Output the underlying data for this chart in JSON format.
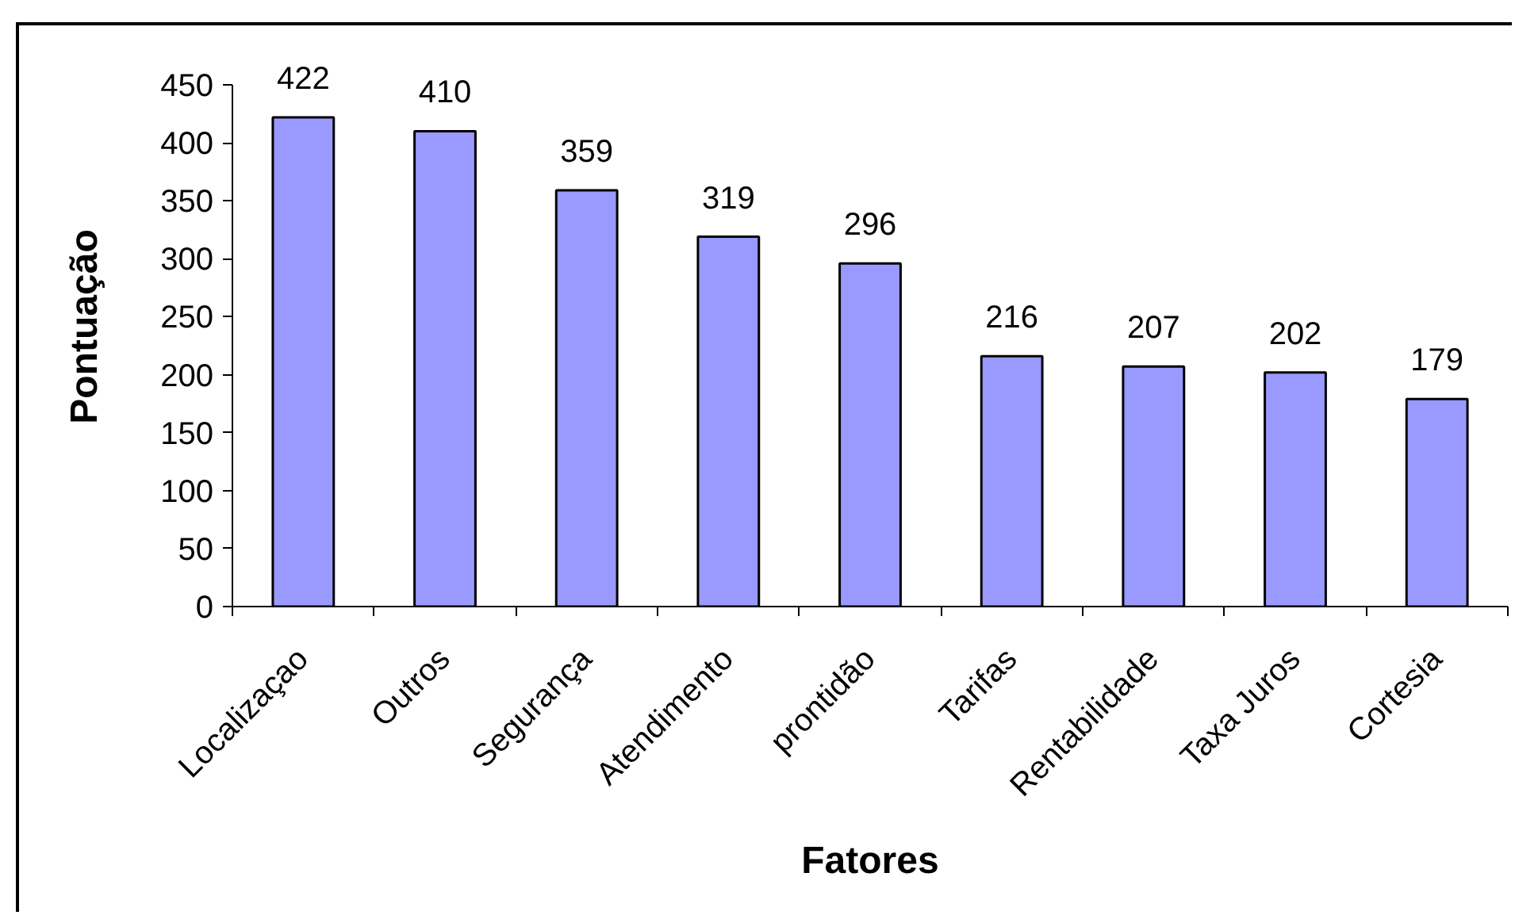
{
  "chart_data": {
    "type": "bar",
    "xlabel": "Fatores",
    "ylabel": "Pontuação",
    "categories": [
      "Localizaçao",
      "Outros",
      "Segurança",
      "Atendimento",
      "prontidão",
      "Tarifas",
      "Rentabilidade",
      "Taxa Juros",
      "Cortesia"
    ],
    "values": [
      422,
      410,
      359,
      319,
      296,
      216,
      207,
      202,
      179
    ],
    "color": "#9999ff",
    "ylim": [
      0,
      450
    ],
    "yticks": [
      0,
      50,
      100,
      150,
      200,
      250,
      300,
      350,
      400,
      450
    ],
    "data_labels": true
  }
}
